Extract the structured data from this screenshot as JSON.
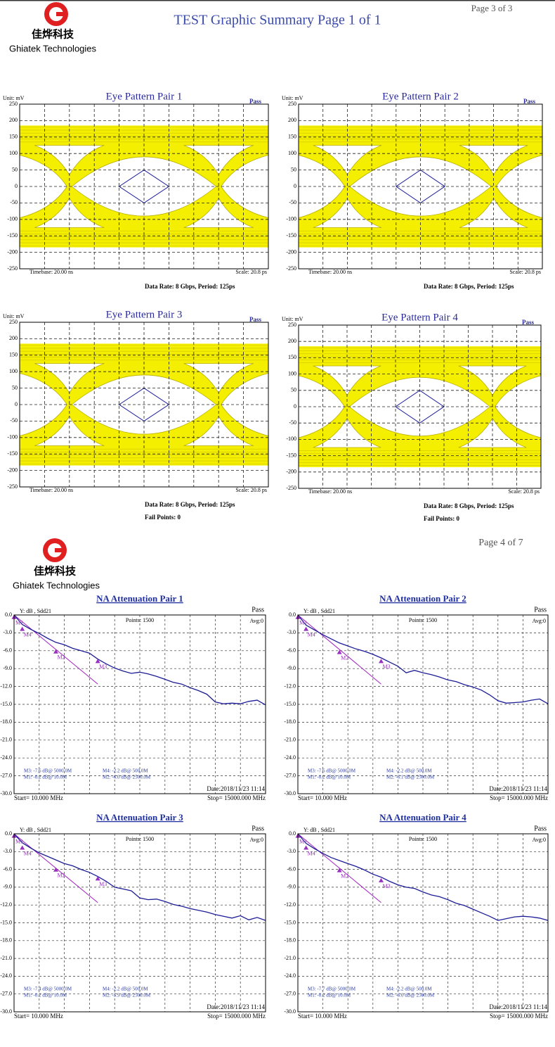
{
  "pages": [
    {
      "page_number": "Page 3 of 3",
      "title": "TEST Graphic Summary Page 1 of 1",
      "company_cn": "佳烨科技",
      "company_en": "Ghiatek Technologies",
      "eye_charts": [
        {
          "title": "Eye Pattern Pair 1",
          "status": "Pass",
          "unit": "Unit: mV",
          "ylim": [
            -250,
            250
          ],
          "yticks": [
            250,
            200,
            150,
            100,
            50,
            0,
            -50,
            -100,
            -150,
            -200,
            -250
          ],
          "timebase": "Timebase: 20.00  ns",
          "scale": "Scale:  20.8  ps",
          "data_rate": "Data Rate: 8 Gbps, Period: 125ps"
        },
        {
          "title": "Eye Pattern Pair 2",
          "status": "Pass",
          "unit": "Unit: mV",
          "ylim": [
            -250,
            250
          ],
          "yticks": [
            250,
            200,
            150,
            100,
            50,
            0,
            -50,
            -100,
            -150,
            -200,
            -250
          ],
          "timebase": "Timebase: 20.00  ns",
          "scale": "Scale:  20.8  ps",
          "data_rate": "Data Rate: 8 Gbps, Period: 125ps"
        },
        {
          "title": "Eye Pattern Pair 3",
          "status": "Pass",
          "unit": "Unit: mV",
          "ylim": [
            -250,
            250
          ],
          "yticks": [
            250,
            200,
            150,
            100,
            50,
            0,
            -50,
            -100,
            -150,
            -200,
            -250
          ],
          "timebase": "Timebase: 20.00  ns",
          "scale": "Scale:  20.8  ps",
          "data_rate": "Data Rate: 8 Gbps, Period: 125ps",
          "fail_points": "Fail Points: 0"
        },
        {
          "title": "Eye Pattern Pair 4",
          "status": "Pass",
          "unit": "Unit: mV",
          "ylim": [
            -250,
            250
          ],
          "yticks": [
            250,
            200,
            150,
            100,
            50,
            0,
            -50,
            -100,
            -150,
            -200,
            -250
          ],
          "timebase": "Timebase: 20.00  ns",
          "scale": "Scale:  20.8  ps",
          "data_rate": "Data Rate: 8 Gbps, Period: 125ps",
          "fail_points": "Fail Points: 0"
        }
      ]
    },
    {
      "page_number": "Page 4 of 7",
      "company_cn": "佳烨科技",
      "company_en": "Ghiatek Technologies",
      "na_charts": [
        {
          "title": "NA  Attenuation  Pair 1",
          "status": "Pass",
          "y_label": "Y: dB , Sdd21",
          "points": "Points: 1500",
          "avg": "Avg:0",
          "xlim": [
            10,
            15000
          ],
          "ylim": [
            -30,
            0
          ],
          "yticks": [
            {
              "value": 0,
              "label": "0.0"
            },
            {
              "value": -3,
              "label": "-3.0"
            },
            {
              "value": -6,
              "label": "-6.0"
            },
            {
              "value": -9,
              "label": "-9.0"
            },
            {
              "value": -12,
              "label": "-12.0"
            },
            {
              "value": -15,
              "label": "-15.0"
            },
            {
              "value": -18,
              "label": "-18.0"
            },
            {
              "value": -21,
              "label": "-21.0"
            },
            {
              "value": -24,
              "label": "-24.0"
            },
            {
              "value": -27,
              "label": "-27.0"
            },
            {
              "value": -30,
              "label": "-30.0"
            }
          ],
          "trace": {
            "color": "#1c1c96",
            "x": [
              10,
              500,
              1000,
              1500,
              2000,
              2500,
              3000,
              3500,
              4000,
              4500,
              5000,
              5500,
              6000,
              6500,
              7000,
              7500,
              8000,
              8500,
              9000,
              9500,
              10000,
              10500,
              11000,
              11500,
              12000,
              12500,
              13000,
              13500,
              14000,
              14500,
              15000
            ],
            "values": [
              0,
              -1.6,
              -2.4,
              -3.1,
              -3.9,
              -4.6,
              -5.0,
              -5.6,
              -6.0,
              -6.4,
              -7.4,
              -8.2,
              -8.9,
              -9.4,
              -9.8,
              -9.6,
              -9.9,
              -10.3,
              -10.8,
              -11.3,
              -11.6,
              -12.2,
              -12.7,
              -13.3,
              -14.6,
              -14.9,
              -14.8,
              -14.9,
              -14.5,
              -14.3,
              -15.1
            ]
          },
          "limit": {
            "color": "#a020c0",
            "x": [
              10,
              5000
            ],
            "values": [
              0,
              -11.6
            ]
          },
          "markers": [
            {
              "label": "M1",
              "x": 10,
              "value": -0.2
            },
            {
              "label": "M4",
              "x": 500,
              "value": -2.2
            },
            {
              "label": "M2",
              "x": 2500,
              "value": -6.0
            },
            {
              "label": "M3",
              "x": 5000,
              "value": -7.6
            }
          ],
          "readouts": [
            "M3: -7.6 dB@ 5000.0M",
            "M1: -0.2 dB@ 10.0M",
            "M4: -2.2 dB@ 500.0M",
            "M2: -6.0 dB@ 2500.0M"
          ],
          "date": "Date:2018/11/23 11:14",
          "start": "Start= 10.000 MHz",
          "stop": "Stop=  15000.000 MHz"
        },
        {
          "title": "NA  Attenuation  Pair 2",
          "status": "Pass",
          "y_label": "Y: dB , Sdd21",
          "points": "Points: 1500",
          "avg": "Avg:0",
          "xlim": [
            10,
            15000
          ],
          "ylim": [
            -30,
            0
          ],
          "yticks": [
            {
              "value": 0,
              "label": "0.0"
            },
            {
              "value": -3,
              "label": "-3.0"
            },
            {
              "value": -6,
              "label": "-6.0"
            },
            {
              "value": -9,
              "label": "-9.0"
            },
            {
              "value": -12,
              "label": "-12.0"
            },
            {
              "value": -15,
              "label": "-15.0"
            },
            {
              "value": -18,
              "label": "-18.0"
            },
            {
              "value": -21,
              "label": "-21.0"
            },
            {
              "value": -24,
              "label": "-24.0"
            },
            {
              "value": -27,
              "label": "-27.0"
            },
            {
              "value": -30,
              "label": "-30.0"
            }
          ],
          "trace": {
            "color": "#1c1c96",
            "x": [
              10,
              500,
              1000,
              1500,
              2000,
              2500,
              3000,
              3500,
              4000,
              4500,
              5000,
              5500,
              6000,
              6500,
              7000,
              7500,
              8000,
              8500,
              9000,
              9500,
              10000,
              10500,
              11000,
              11500,
              12000,
              12500,
              13000,
              13500,
              14000,
              14500,
              15000
            ],
            "values": [
              0,
              -1.7,
              -2.5,
              -3.3,
              -4.0,
              -4.7,
              -5.2,
              -5.7,
              -6.1,
              -6.6,
              -7.2,
              -7.9,
              -8.6,
              -9.7,
              -9.3,
              -9.7,
              -10.0,
              -10.4,
              -10.9,
              -11.2,
              -11.7,
              -12.1,
              -12.6,
              -13.4,
              -14.4,
              -14.8,
              -14.7,
              -14.6,
              -14.3,
              -14.1,
              -14.9
            ]
          },
          "limit": {
            "color": "#a020c0",
            "x": [
              10,
              5000
            ],
            "values": [
              0,
              -11.6
            ]
          },
          "markers": [
            {
              "label": "M1",
              "x": 10,
              "value": -0.2
            },
            {
              "label": "M4",
              "x": 500,
              "value": -2.2
            },
            {
              "label": "M2",
              "x": 2500,
              "value": -6.1
            },
            {
              "label": "M3",
              "x": 5000,
              "value": -7.6
            }
          ],
          "readouts": [
            "M3: -7.6 dB@ 5000.0M",
            "M1: -0.2 dB@ 10.0M",
            "M4: -2.2 dB@ 500.0M",
            "M2: -6.1 dB@ 2500.0M"
          ],
          "date": "Date:2018/11/23 11:14",
          "start": "Start= 10.000 MHz",
          "stop": "Stop=  15000.000 MHz"
        },
        {
          "title": "NA  Attenuation  Pair 3",
          "status": "Pass",
          "y_label": "Y: dB , Sdd21",
          "points": "Points: 1500",
          "avg": "Avg:0",
          "xlim": [
            10,
            15000
          ],
          "ylim": [
            -30,
            0
          ],
          "yticks": [
            {
              "value": 0,
              "label": "0.0"
            },
            {
              "value": -3,
              "label": "-3.0"
            },
            {
              "value": -6,
              "label": "-6.0"
            },
            {
              "value": -9,
              "label": "-9.0"
            },
            {
              "value": -12,
              "label": "-12.0"
            },
            {
              "value": -15,
              "label": "-15.0"
            },
            {
              "value": -18,
              "label": "-18.0"
            },
            {
              "value": -21,
              "label": "-21.0"
            },
            {
              "value": -24,
              "label": "-24.0"
            },
            {
              "value": -27,
              "label": "-27.0"
            },
            {
              "value": -30,
              "label": "-30.0"
            }
          ],
          "trace": {
            "color": "#1c1c96",
            "x": [
              10,
              500,
              1000,
              1500,
              2000,
              2500,
              3000,
              3500,
              4000,
              4500,
              5000,
              5500,
              6000,
              6500,
              7000,
              7500,
              8000,
              8500,
              9000,
              9500,
              10000,
              10500,
              11000,
              11500,
              12000,
              12500,
              13000,
              13500,
              14000,
              14500,
              15000
            ],
            "values": [
              0,
              -1.5,
              -2.4,
              -3.2,
              -3.8,
              -4.4,
              -5.0,
              -5.4,
              -6.0,
              -6.5,
              -7.2,
              -8.0,
              -9.0,
              -9.3,
              -9.6,
              -10.8,
              -11.1,
              -11.0,
              -11.4,
              -11.9,
              -12.2,
              -12.6,
              -12.9,
              -13.2,
              -13.6,
              -13.9,
              -14.2,
              -13.8,
              -14.5,
              -14.1,
              -14.6
            ]
          },
          "limit": {
            "color": "#a020c0",
            "x": [
              10,
              5000
            ],
            "values": [
              0,
              -11.6
            ]
          },
          "markers": [
            {
              "label": "M1",
              "x": 10,
              "value": -0.2
            },
            {
              "label": "M4",
              "x": 500,
              "value": -2.2
            },
            {
              "label": "M2",
              "x": 2500,
              "value": -5.9
            },
            {
              "label": "M3",
              "x": 5000,
              "value": -7.4
            }
          ],
          "readouts": [
            "M3: -7.4 dB@ 5000.0M",
            "M1: -0.2 dB@ 10.0M",
            "M4: -2.2 dB@ 500.0M",
            "M2: -5.9 dB@ 2500.0M"
          ],
          "date": "Date:2018/11/23 11:14",
          "start": "Start= 10.000 MHz",
          "stop": "Stop=  15000.000 MHz"
        },
        {
          "title": "NA  Attenuation  Pair 4",
          "status": "Pass",
          "y_label": "Y: dB , Sdd21",
          "points": "Points: 1500",
          "avg": "Avg:0",
          "xlim": [
            10,
            15000
          ],
          "ylim": [
            -30,
            0
          ],
          "yticks": [
            {
              "value": 0,
              "label": "0.0"
            },
            {
              "value": -3,
              "label": "-3.0"
            },
            {
              "value": -6,
              "label": "-6.0"
            },
            {
              "value": -9,
              "label": "-9.0"
            },
            {
              "value": -12,
              "label": "-12.0"
            },
            {
              "value": -15,
              "label": "-15.0"
            },
            {
              "value": -18,
              "label": "-18.0"
            },
            {
              "value": -21,
              "label": "-21.0"
            },
            {
              "value": -24,
              "label": "-24.0"
            },
            {
              "value": -27,
              "label": "-27.0"
            },
            {
              "value": -30,
              "label": "-30.0"
            }
          ],
          "trace": {
            "color": "#1c1c96",
            "x": [
              10,
              500,
              1000,
              1500,
              2000,
              2500,
              3000,
              3500,
              4000,
              4500,
              5000,
              5500,
              6000,
              6500,
              7000,
              7500,
              8000,
              8500,
              9000,
              9500,
              10000,
              10500,
              11000,
              11500,
              12000,
              12500,
              13000,
              13500,
              14000,
              14500,
              15000
            ],
            "values": [
              0,
              -1.6,
              -2.5,
              -3.3,
              -4.0,
              -4.5,
              -5.0,
              -5.5,
              -6.1,
              -6.8,
              -7.3,
              -8.0,
              -8.6,
              -9.0,
              -9.2,
              -9.8,
              -10.3,
              -10.6,
              -11.1,
              -11.7,
              -12.1,
              -12.7,
              -13.3,
              -13.9,
              -14.6,
              -14.3,
              -14.0,
              -13.9,
              -14.0,
              -14.2,
              -14.6
            ]
          },
          "limit": {
            "color": "#a020c0",
            "x": [
              10,
              5000
            ],
            "values": [
              0,
              -11.6
            ]
          },
          "markers": [
            {
              "label": "M1",
              "x": 10,
              "value": -0.2
            },
            {
              "label": "M4",
              "x": 500,
              "value": -2.2
            },
            {
              "label": "M2",
              "x": 2500,
              "value": -6.0
            },
            {
              "label": "M3",
              "x": 5000,
              "value": -7.7
            }
          ],
          "readouts": [
            "M3: -7.7 dB@ 5000.0M",
            "M1: -0.2 dB@ 10.0M",
            "M4: -2.2 dB@ 500.0M",
            "M2: -6.0 dB@ 2500.0M"
          ],
          "date": "Date:2018/11/23 11:14",
          "start": "Start= 10.000 MHz",
          "stop": "Stop=  15000.000 MHz"
        }
      ]
    }
  ]
}
